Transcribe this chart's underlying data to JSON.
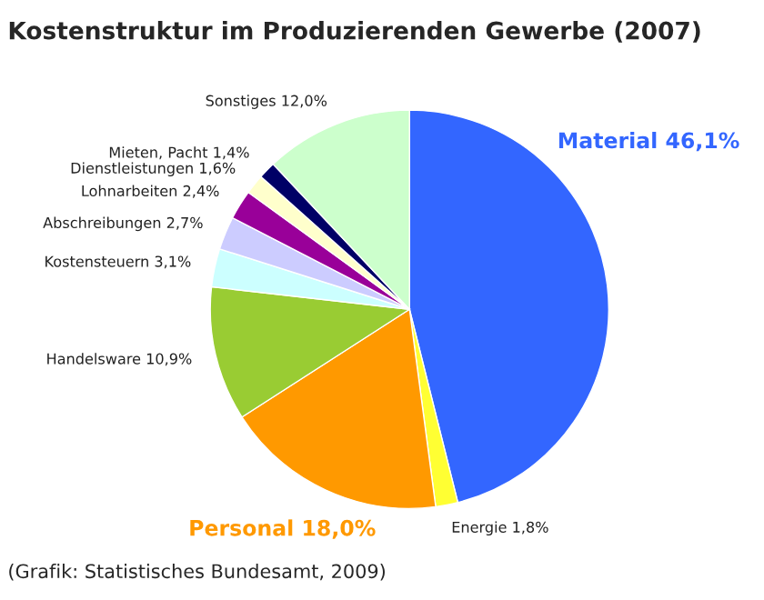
{
  "chart_data": {
    "type": "pie",
    "title": "Kostenstruktur im Produzierenden Gewerbe (2007)",
    "categories": [
      "Material",
      "Energie",
      "Personal",
      "Handelsware",
      "Kostensteuern",
      "Abschreibungen",
      "Lohnarbeiten",
      "Dienstleistungen",
      "Mieten, Pacht",
      "Sonstiges"
    ],
    "values": [
      46.1,
      1.8,
      18.0,
      10.9,
      3.1,
      2.7,
      2.4,
      1.6,
      1.4,
      12.0
    ],
    "value_labels": [
      "46,1%",
      "1,8%",
      "18,0%",
      "10,9%",
      "3,1%",
      "2,7%",
      "2,4%",
      "1,6%",
      "1,4%",
      "12,0%"
    ],
    "colors": [
      "#3366ff",
      "#ffff33",
      "#ff9900",
      "#99cc33",
      "#ccffff",
      "#ccccff",
      "#990099",
      "#ffffcc",
      "#000066",
      "#ccffcc"
    ],
    "annotations": [
      "(Grafik: Statistisches Bundesamt, 2009)"
    ],
    "legend": false
  }
}
